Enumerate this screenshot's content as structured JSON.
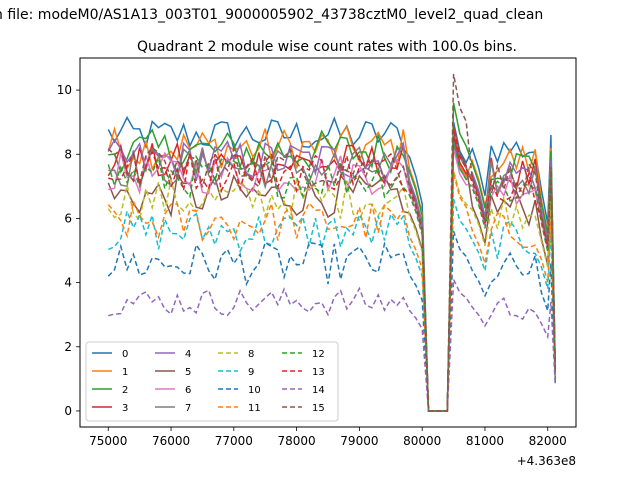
{
  "figure": {
    "suptitle": "n file: modeM0/AS1A13_003T01_9000005902_43738cztM0_level2_quad_clean",
    "title": "Quadrant 2 module wise count rates with 100.0s bins.",
    "x_offset_label": "+4.363e8"
  },
  "chart_data": {
    "type": "line",
    "title": "Quadrant 2 module wise count rates with 100.0s bins.",
    "xlabel": "",
    "ylabel": "",
    "x_offset": 436300000,
    "xlim": [
      74550,
      82450
    ],
    "ylim": [
      -0.5,
      11.0
    ],
    "xticks": [
      75000,
      76000,
      77000,
      78000,
      79000,
      80000,
      81000,
      82000
    ],
    "xtick_labels": [
      "75000",
      "76000",
      "77000",
      "78000",
      "79000",
      "80000",
      "81000",
      "82000"
    ],
    "yticks": [
      0,
      2,
      4,
      6,
      8,
      10
    ],
    "ytick_labels": [
      "0",
      "2",
      "4",
      "6",
      "8",
      "10"
    ],
    "grid": false,
    "legend_position": "lower-left",
    "legend_columns": 4,
    "series": [
      {
        "name": "0",
        "color": "#1f77b4",
        "style": "solid",
        "level": 8.6,
        "amp": 0.25,
        "peak": 9.0,
        "tail": 1.2
      },
      {
        "name": "1",
        "color": "#ff7f0e",
        "style": "solid",
        "level": 8.2,
        "amp": 0.3,
        "peak": 8.5,
        "tail": 1.0
      },
      {
        "name": "2",
        "color": "#2ca02c",
        "style": "solid",
        "level": 8.1,
        "amp": 0.3,
        "peak": 9.6,
        "tail": 1.4
      },
      {
        "name": "3",
        "color": "#d62728",
        "style": "solid",
        "level": 7.7,
        "amp": 0.3,
        "peak": 8.6,
        "tail": 1.1
      },
      {
        "name": "4",
        "color": "#9467bd",
        "style": "solid",
        "level": 7.8,
        "amp": 0.3,
        "peak": 8.4,
        "tail": 1.2
      },
      {
        "name": "5",
        "color": "#8c564b",
        "style": "solid",
        "level": 6.7,
        "amp": 0.3,
        "peak": 8.9,
        "tail": 1.3
      },
      {
        "name": "6",
        "color": "#e377c2",
        "style": "solid",
        "level": 7.4,
        "amp": 0.3,
        "peak": 8.2,
        "tail": 1.1
      },
      {
        "name": "7",
        "color": "#7f7f7f",
        "style": "solid",
        "level": 7.6,
        "amp": 0.3,
        "peak": 8.8,
        "tail": 1.0
      },
      {
        "name": "8",
        "color": "#bcbd22",
        "style": "dashed",
        "level": 6.6,
        "amp": 0.3,
        "peak": 7.5,
        "tail": 1.0
      },
      {
        "name": "9",
        "color": "#17becf",
        "style": "dashed",
        "level": 5.6,
        "amp": 0.3,
        "peak": 6.6,
        "tail": 0.9
      },
      {
        "name": "10",
        "color": "#1f77b4",
        "style": "dashed",
        "level": 4.6,
        "amp": 0.3,
        "peak": 5.6,
        "tail": 0.8
      },
      {
        "name": "11",
        "color": "#ff7f0e",
        "style": "dashed",
        "level": 5.9,
        "amp": 0.3,
        "peak": 7.4,
        "tail": 1.0
      },
      {
        "name": "12",
        "color": "#2ca02c",
        "style": "dashed",
        "level": 7.3,
        "amp": 0.3,
        "peak": 8.4,
        "tail": 1.0
      },
      {
        "name": "13",
        "color": "#d62728",
        "style": "dashed",
        "level": 7.5,
        "amp": 0.3,
        "peak": 8.8,
        "tail": 1.2
      },
      {
        "name": "14",
        "color": "#9467bd",
        "style": "dashed",
        "level": 3.4,
        "amp": 0.2,
        "peak": 4.1,
        "tail": 0.8
      },
      {
        "name": "15",
        "color": "#8c564b",
        "style": "dashed",
        "level": 7.6,
        "amp": 0.3,
        "peak": 10.5,
        "tail": 1.3
      }
    ]
  }
}
